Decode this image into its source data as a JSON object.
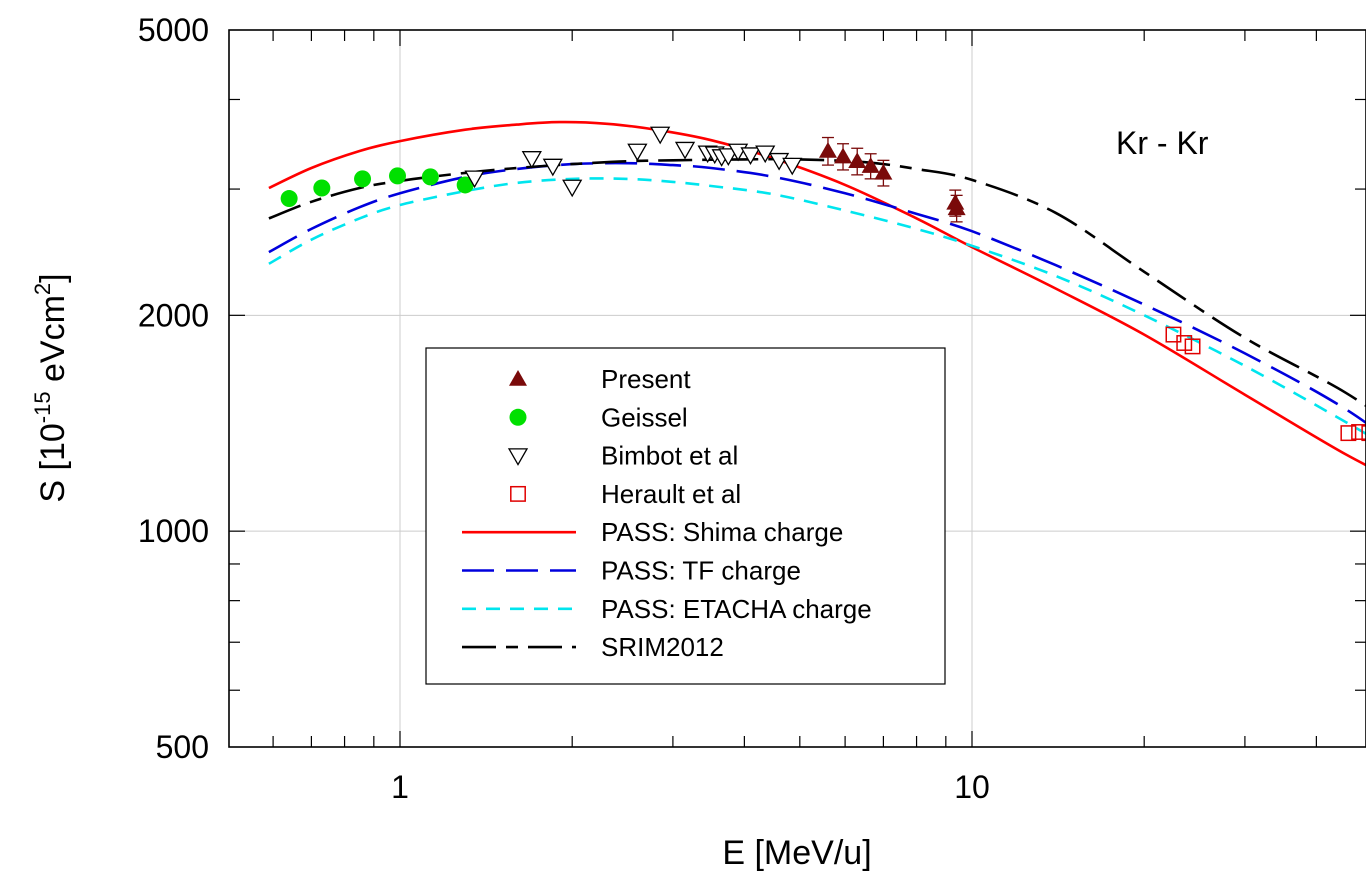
{
  "chart_data": {
    "type": "scatter",
    "title": "",
    "xlabel": "E [MeV/u]",
    "ylabel": {
      "base": "S [10",
      "exp1": "-15",
      "mid": " eVcm",
      "exp2": "2",
      "end": "]"
    },
    "xscale": "log",
    "yscale": "log",
    "xlim": [
      0.59,
      60
    ],
    "ylim": [
      500,
      5000
    ],
    "xticks": [
      {
        "value": 1,
        "label": "1"
      },
      {
        "value": 10,
        "label": "10"
      }
    ],
    "yticks": [
      {
        "value": 500,
        "label": "500"
      },
      {
        "value": 1000,
        "label": "1000"
      },
      {
        "value": 2000,
        "label": "2000"
      },
      {
        "value": 5000,
        "label": "5000"
      }
    ],
    "grid": true,
    "annotation": "Kr - Kr",
    "legend_position": "center-left",
    "series": [
      {
        "name": "Present",
        "kind": "points",
        "marker": "triangle-up",
        "color": "#7a0a0a",
        "points": [
          {
            "x": 5.6,
            "y": 3390,
            "err": 150
          },
          {
            "x": 5.95,
            "y": 3330,
            "err": 140
          },
          {
            "x": 6.3,
            "y": 3280,
            "err": 140
          },
          {
            "x": 6.65,
            "y": 3230,
            "err": 130
          },
          {
            "x": 7.0,
            "y": 3160,
            "err": 130
          },
          {
            "x": 9.35,
            "y": 2870,
            "err": 120
          },
          {
            "x": 9.4,
            "y": 2820,
            "err": 120
          }
        ]
      },
      {
        "name": "Geissel",
        "kind": "points",
        "marker": "circle",
        "color": "#00e000",
        "points": [
          {
            "x": 0.64,
            "y": 2910
          },
          {
            "x": 0.73,
            "y": 3010
          },
          {
            "x": 0.86,
            "y": 3100
          },
          {
            "x": 0.99,
            "y": 3130
          },
          {
            "x": 1.13,
            "y": 3120
          },
          {
            "x": 1.3,
            "y": 3040
          }
        ]
      },
      {
        "name": "Bimbot et al",
        "kind": "points",
        "marker": "triangle-down",
        "color": "#000000",
        "points": [
          {
            "x": 1.35,
            "y": 3110
          },
          {
            "x": 1.7,
            "y": 3310
          },
          {
            "x": 1.85,
            "y": 3230
          },
          {
            "x": 2.0,
            "y": 3020
          },
          {
            "x": 2.6,
            "y": 3390
          },
          {
            "x": 2.85,
            "y": 3580
          },
          {
            "x": 3.15,
            "y": 3410
          },
          {
            "x": 3.45,
            "y": 3370
          },
          {
            "x": 3.55,
            "y": 3360
          },
          {
            "x": 3.65,
            "y": 3330
          },
          {
            "x": 3.75,
            "y": 3340
          },
          {
            "x": 3.9,
            "y": 3390
          },
          {
            "x": 4.1,
            "y": 3350
          },
          {
            "x": 4.35,
            "y": 3370
          },
          {
            "x": 4.6,
            "y": 3290
          },
          {
            "x": 4.85,
            "y": 3240
          }
        ]
      },
      {
        "name": "Herault et al",
        "kind": "points",
        "marker": "square",
        "color": "#e00000",
        "points": [
          {
            "x": 22.5,
            "y": 1880
          },
          {
            "x": 23.5,
            "y": 1830
          },
          {
            "x": 24.3,
            "y": 1810
          },
          {
            "x": 45.5,
            "y": 1370
          },
          {
            "x": 47.5,
            "y": 1375
          },
          {
            "x": 49.5,
            "y": 1370
          }
        ]
      },
      {
        "name": "PASS: Shima charge",
        "kind": "line",
        "color": "#ff0000",
        "dash": "solid",
        "x": [
          0.59,
          0.7,
          0.85,
          1.0,
          1.3,
          1.6,
          1.9,
          2.3,
          2.8,
          3.5,
          4.5,
          6.0,
          8.0,
          10.0,
          14.0,
          20.0,
          30.0,
          45.0,
          60.0
        ],
        "y": [
          3010,
          3210,
          3390,
          3500,
          3630,
          3690,
          3720,
          3700,
          3630,
          3510,
          3310,
          3040,
          2730,
          2490,
          2180,
          1880,
          1550,
          1280,
          1140
        ]
      },
      {
        "name": "PASS: TF charge",
        "kind": "line",
        "color": "#0000dd",
        "dash": "long-dash",
        "x": [
          0.59,
          0.7,
          0.85,
          1.0,
          1.3,
          1.6,
          2.0,
          2.5,
          3.0,
          3.5,
          4.5,
          6.0,
          8.0,
          10.0,
          14.0,
          20.0,
          30.0,
          45.0,
          60.0
        ],
        "y": [
          2450,
          2640,
          2830,
          2960,
          3120,
          3200,
          3250,
          3260,
          3240,
          3210,
          3120,
          2960,
          2770,
          2620,
          2350,
          2070,
          1770,
          1480,
          1250
        ]
      },
      {
        "name": "PASS: ETACHA charge",
        "kind": "line",
        "color": "#00e5ee",
        "dash": "short-dash",
        "x": [
          0.59,
          0.7,
          0.85,
          1.0,
          1.3,
          1.6,
          2.0,
          2.5,
          3.0,
          3.5,
          4.5,
          6.0,
          8.0,
          10.0,
          14.0,
          20.0,
          30.0,
          45.0,
          60.0
        ],
        "y": [
          2360,
          2550,
          2730,
          2850,
          2980,
          3060,
          3100,
          3100,
          3070,
          3030,
          2950,
          2800,
          2640,
          2500,
          2270,
          2000,
          1700,
          1420,
          1240
        ]
      },
      {
        "name": "SRIM2012",
        "kind": "line",
        "color": "#000000",
        "dash": "dash-dot",
        "x": [
          0.59,
          0.7,
          0.85,
          1.0,
          1.3,
          1.6,
          2.0,
          2.5,
          3.0,
          4.0,
          5.0,
          6.5,
          8.0,
          10.0,
          14.0,
          20.0,
          30.0,
          45.0,
          60.0
        ],
        "y": [
          2730,
          2880,
          3010,
          3080,
          3160,
          3210,
          3250,
          3280,
          3290,
          3300,
          3300,
          3270,
          3200,
          3090,
          2780,
          2300,
          1860,
          1560,
          1330
        ]
      }
    ]
  }
}
